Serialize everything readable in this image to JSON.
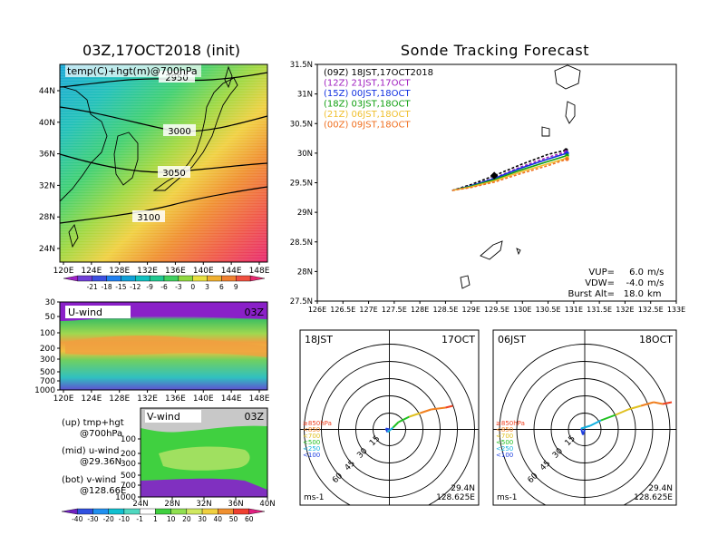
{
  "titles": {
    "left": "03Z,17OCT2018 (init)",
    "right": "Sonde Tracking Forecast"
  },
  "temp_map": {
    "label": "temp(C)+hgt(m)@700hPa",
    "lat_ticks": [
      "44N",
      "40N",
      "36N",
      "32N",
      "28N",
      "24N"
    ],
    "lon_ticks": [
      "120E",
      "124E",
      "128E",
      "132E",
      "136E",
      "140E",
      "144E",
      "148E"
    ],
    "contour_labels": [
      "2950",
      "3000",
      "3050",
      "3100"
    ],
    "colorbar_labels": [
      "-21",
      "-18",
      "-15",
      "-12",
      "-9",
      "-6",
      "-3",
      "0",
      "3",
      "6",
      "9"
    ],
    "colorbar_colors": [
      "#a020c8",
      "#7040d8",
      "#3c50e0",
      "#2080f0",
      "#10a0d8",
      "#10c0c0",
      "#20c890",
      "#40d060",
      "#90d840",
      "#e8e040",
      "#f0b030",
      "#f08030",
      "#f05040",
      "#e82870"
    ]
  },
  "u_wind": {
    "label": "U-wind",
    "time": "03Z",
    "p_ticks": [
      "30",
      "50",
      "100",
      "200",
      "300",
      "500",
      "700",
      "1000"
    ],
    "lon_ticks": [
      "120E",
      "124E",
      "128E",
      "132E",
      "136E",
      "140E",
      "144E",
      "148E"
    ]
  },
  "v_wind": {
    "label": "V-wind",
    "time": "03Z",
    "p_ticks": [
      "100",
      "200",
      "300",
      "500",
      "700",
      "1000"
    ],
    "lat_ticks": [
      "24N",
      "28N",
      "32N",
      "36N",
      "40N"
    ],
    "colorbar_labels": [
      "-40",
      "-30",
      "-20",
      "-10",
      "-1",
      "1",
      "10",
      "20",
      "30",
      "40",
      "50",
      "60"
    ],
    "colorbar_colors": [
      "#7020c0",
      "#3050e0",
      "#2090f0",
      "#10c0d0",
      "#50d8c0",
      "#ffffff",
      "#40d040",
      "#90e050",
      "#d0e860",
      "#f0d040",
      "#f09030",
      "#f04030",
      "#e02080"
    ]
  },
  "legend_text": [
    {
      "a": "(up) tmp+hgt",
      "b": "@700hPa"
    },
    {
      "a": "(mid) u-wind",
      "b": "@29.36N"
    },
    {
      "a": "(bot) v-wind",
      "b": "@128.66E"
    }
  ],
  "track_map": {
    "lat_ticks": [
      "31.5N",
      "31N",
      "30.5N",
      "30N",
      "29.5N",
      "29N",
      "28.5N",
      "28N",
      "27.5N"
    ],
    "lon_ticks": [
      "126E",
      "126.5E",
      "127E",
      "127.5E",
      "128E",
      "128.5E",
      "129E",
      "129.5E",
      "130E",
      "130.5E",
      "131E",
      "131.5E",
      "132E",
      "132.5E",
      "133E"
    ],
    "params": [
      {
        "label": "VUP=",
        "value": "6.0",
        "unit": "m/s"
      },
      {
        "label": "VDW=",
        "value": "-4.0",
        "unit": "m/s"
      },
      {
        "label": "Burst Alt=",
        "value": "18.0",
        "unit": "km"
      }
    ]
  },
  "chart_data": {
    "type": "line",
    "xlim": [
      126,
      133
    ],
    "ylim": [
      27.5,
      31.5
    ],
    "launch_point": {
      "lon": 129.45,
      "lat": 29.62
    },
    "series": [
      {
        "name": "(09Z) 18JST,17OCT2018",
        "color": "#000000",
        "dash": true,
        "points": [
          [
            128.63,
            29.37
          ],
          [
            129.0,
            29.47
          ],
          [
            129.45,
            29.62
          ],
          [
            129.95,
            29.8
          ],
          [
            130.5,
            29.98
          ],
          [
            130.85,
            30.05
          ]
        ]
      },
      {
        "name": "(12Z) 21JST,17OCT",
        "color": "#a020c0",
        "dash": true,
        "points": [
          [
            128.63,
            29.37
          ],
          [
            129.0,
            29.45
          ],
          [
            129.45,
            29.58
          ],
          [
            129.95,
            29.76
          ],
          [
            130.5,
            29.93
          ],
          [
            130.85,
            30.02
          ]
        ]
      },
      {
        "name": "(15Z) 00JST,18OCT",
        "color": "#1030e0",
        "dash": false,
        "points": [
          [
            128.63,
            29.37
          ],
          [
            129.0,
            29.45
          ],
          [
            129.45,
            29.57
          ],
          [
            129.95,
            29.74
          ],
          [
            130.5,
            29.9
          ],
          [
            130.87,
            30.0
          ]
        ]
      },
      {
        "name": "(18Z) 03JST,18OCT",
        "color": "#10a010",
        "dash": false,
        "points": [
          [
            128.63,
            29.37
          ],
          [
            129.0,
            29.44
          ],
          [
            129.45,
            29.55
          ],
          [
            129.95,
            29.71
          ],
          [
            130.5,
            29.86
          ],
          [
            130.87,
            29.96
          ]
        ]
      },
      {
        "name": "(21Z) 06JST,18OCT",
        "color": "#f0c030",
        "dash": false,
        "points": [
          [
            128.63,
            29.37
          ],
          [
            129.0,
            29.43
          ],
          [
            129.45,
            29.53
          ],
          [
            129.95,
            29.68
          ],
          [
            130.5,
            29.82
          ],
          [
            130.87,
            29.92
          ]
        ]
      },
      {
        "name": "(00Z) 09JST,18OCT",
        "color": "#f07020",
        "dash": true,
        "points": [
          [
            128.63,
            29.37
          ],
          [
            129.0,
            29.42
          ],
          [
            129.45,
            29.51
          ],
          [
            129.95,
            29.65
          ],
          [
            130.5,
            29.79
          ],
          [
            130.87,
            29.9
          ]
        ]
      }
    ]
  },
  "hodographs": [
    {
      "time": "18JST",
      "date": "17OCT",
      "lat": "29.4N",
      "lon": "128.625E",
      "unit": "ms-1",
      "ring_labels": [
        "15",
        "30",
        "45",
        "60"
      ],
      "levels": [
        "≥850hPa",
        "<850",
        "<700",
        "<500",
        "<250",
        "<100"
      ],
      "level_colors": [
        "#f04020",
        "#f08020",
        "#e0c020",
        "#20c020",
        "#10b0e0",
        "#2040e0"
      ]
    },
    {
      "time": "06JST",
      "date": "18OCT",
      "lat": "29.4N",
      "lon": "128.625E",
      "unit": "ms-1",
      "ring_labels": [
        "15",
        "30",
        "45",
        "60"
      ],
      "levels": [
        "≥850hPa",
        "<850",
        "<700",
        "<500",
        "<250",
        "<100"
      ],
      "level_colors": [
        "#f04020",
        "#f08020",
        "#e0c020",
        "#20c020",
        "#10b0e0",
        "#2040e0"
      ]
    }
  ]
}
